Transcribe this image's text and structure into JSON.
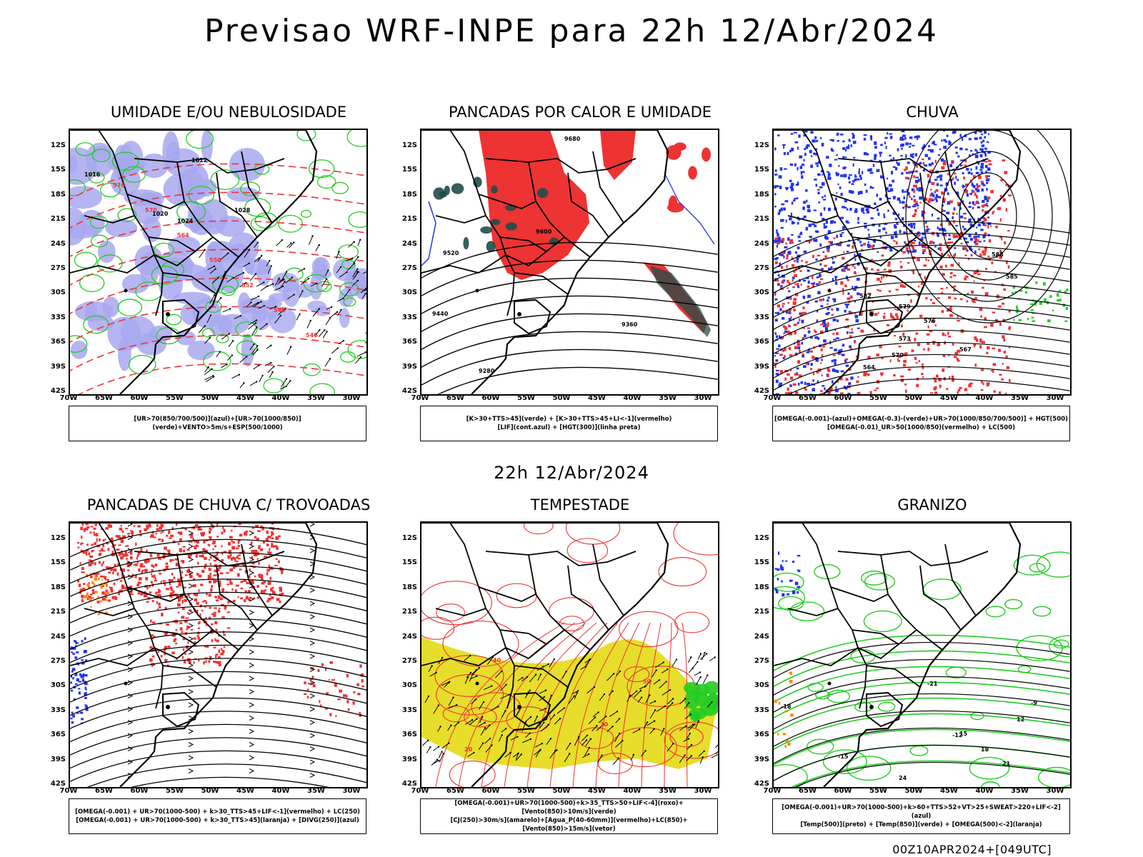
{
  "title": "Previsao WRF-INPE  para 22h 12/Abr/2024",
  "mid_label": "22h 12/Abr/2024",
  "footer": "00Z10APR2024+[049UTC]",
  "lat_labels": [
    "12S",
    "15S",
    "18S",
    "21S",
    "24S",
    "27S",
    "30S",
    "33S",
    "36S",
    "39S",
    "42S"
  ],
  "lon_labels": [
    "70W",
    "65W",
    "60W",
    "55W",
    "50W",
    "45W",
    "40W",
    "35W",
    "30W"
  ],
  "colors": {
    "blue_humidity": "#a8a8f0",
    "green": "#22cc22",
    "red": "#ee3333",
    "yellow": "#e6de2a",
    "dark_teal": "#1f4d4a",
    "blue": "#2233ee",
    "orange": "#ff8800"
  },
  "panels": [
    {
      "title": "UMIDADE E/OU NEBULOSIDADE",
      "legend": [
        "[UR>70(850/700/500)](azul)+[UR>70(1000/850)](verde)+VENTO>5m/s+ESP(500/1000)"
      ],
      "contour_labels": [
        "1012",
        "1016",
        "1020",
        "1024",
        "1028",
        "576",
        "570",
        "564",
        "558",
        "552",
        "546",
        "540"
      ]
    },
    {
      "title": "PANCADAS POR CALOR E UMIDADE",
      "legend": [
        "[K>30+TTS>45](verde) + [K>30+TTS>45+LI<-1](vermelho)",
        "[LIF](cont.azul) + [HGT(300)](linha preta)"
      ],
      "contour_labels": [
        "9680",
        "9600",
        "9520",
        "9440",
        "9360",
        "9280"
      ]
    },
    {
      "title": "CHUVA",
      "legend": [
        "[OMEGA(-0.001)-(azul)+OMEGA(-0.3)-(verde)+UR>70(1000/850/700/500)] + HGT(500)",
        "[OMEGA(-0.01)_UR>50(1000/850)(vermelho) + LC(500)"
      ],
      "contour_labels": [
        "588",
        "585",
        "582",
        "579",
        "576",
        "573",
        "570",
        "567",
        "564"
      ]
    },
    {
      "title": "PANCADAS DE CHUVA C/ TROVOADAS",
      "legend": [
        "[OMEGA(-0.001) + UR>70(1000-500) + k>30_TTS>45+LIF<-1](vermelho) + LC(250)",
        "[OMEGA(-0.001) + UR>70(1000-500) + k>30_TTS>45](laranja) + [DIVG(250)](azul)"
      ],
      "contour_labels": []
    },
    {
      "title": "TEMPESTADE",
      "legend": [
        "[OMEGA(-0.001)+UR>70(1000-500)+k>35_TTS>50+LIF<-4](roxo)+[Vento(850)>10m/s](verde)",
        "[CJ(250)>30m/s](amarelo)+[Agua_P(40-60mm)](vermelho)+LC(850)+[Vento(850)>15m/s](vetor)"
      ],
      "contour_labels": [
        "50",
        "40",
        "30",
        "20"
      ]
    },
    {
      "title": "GRANIZO",
      "legend": [
        "[OMEGA(-0.001)+UR>70(1000-500)+k>60+TTS>52+VT>25+SWEAT>220+LIF<-2](azul)",
        "[Temp(500)](preto) + [Temp(850)](verde) + [OMEGA(500)<-2](laranja)"
      ],
      "contour_labels": [
        "-21",
        "-18",
        "-15",
        "-12",
        "-9",
        "12",
        "15",
        "18",
        "21",
        "24"
      ]
    }
  ]
}
